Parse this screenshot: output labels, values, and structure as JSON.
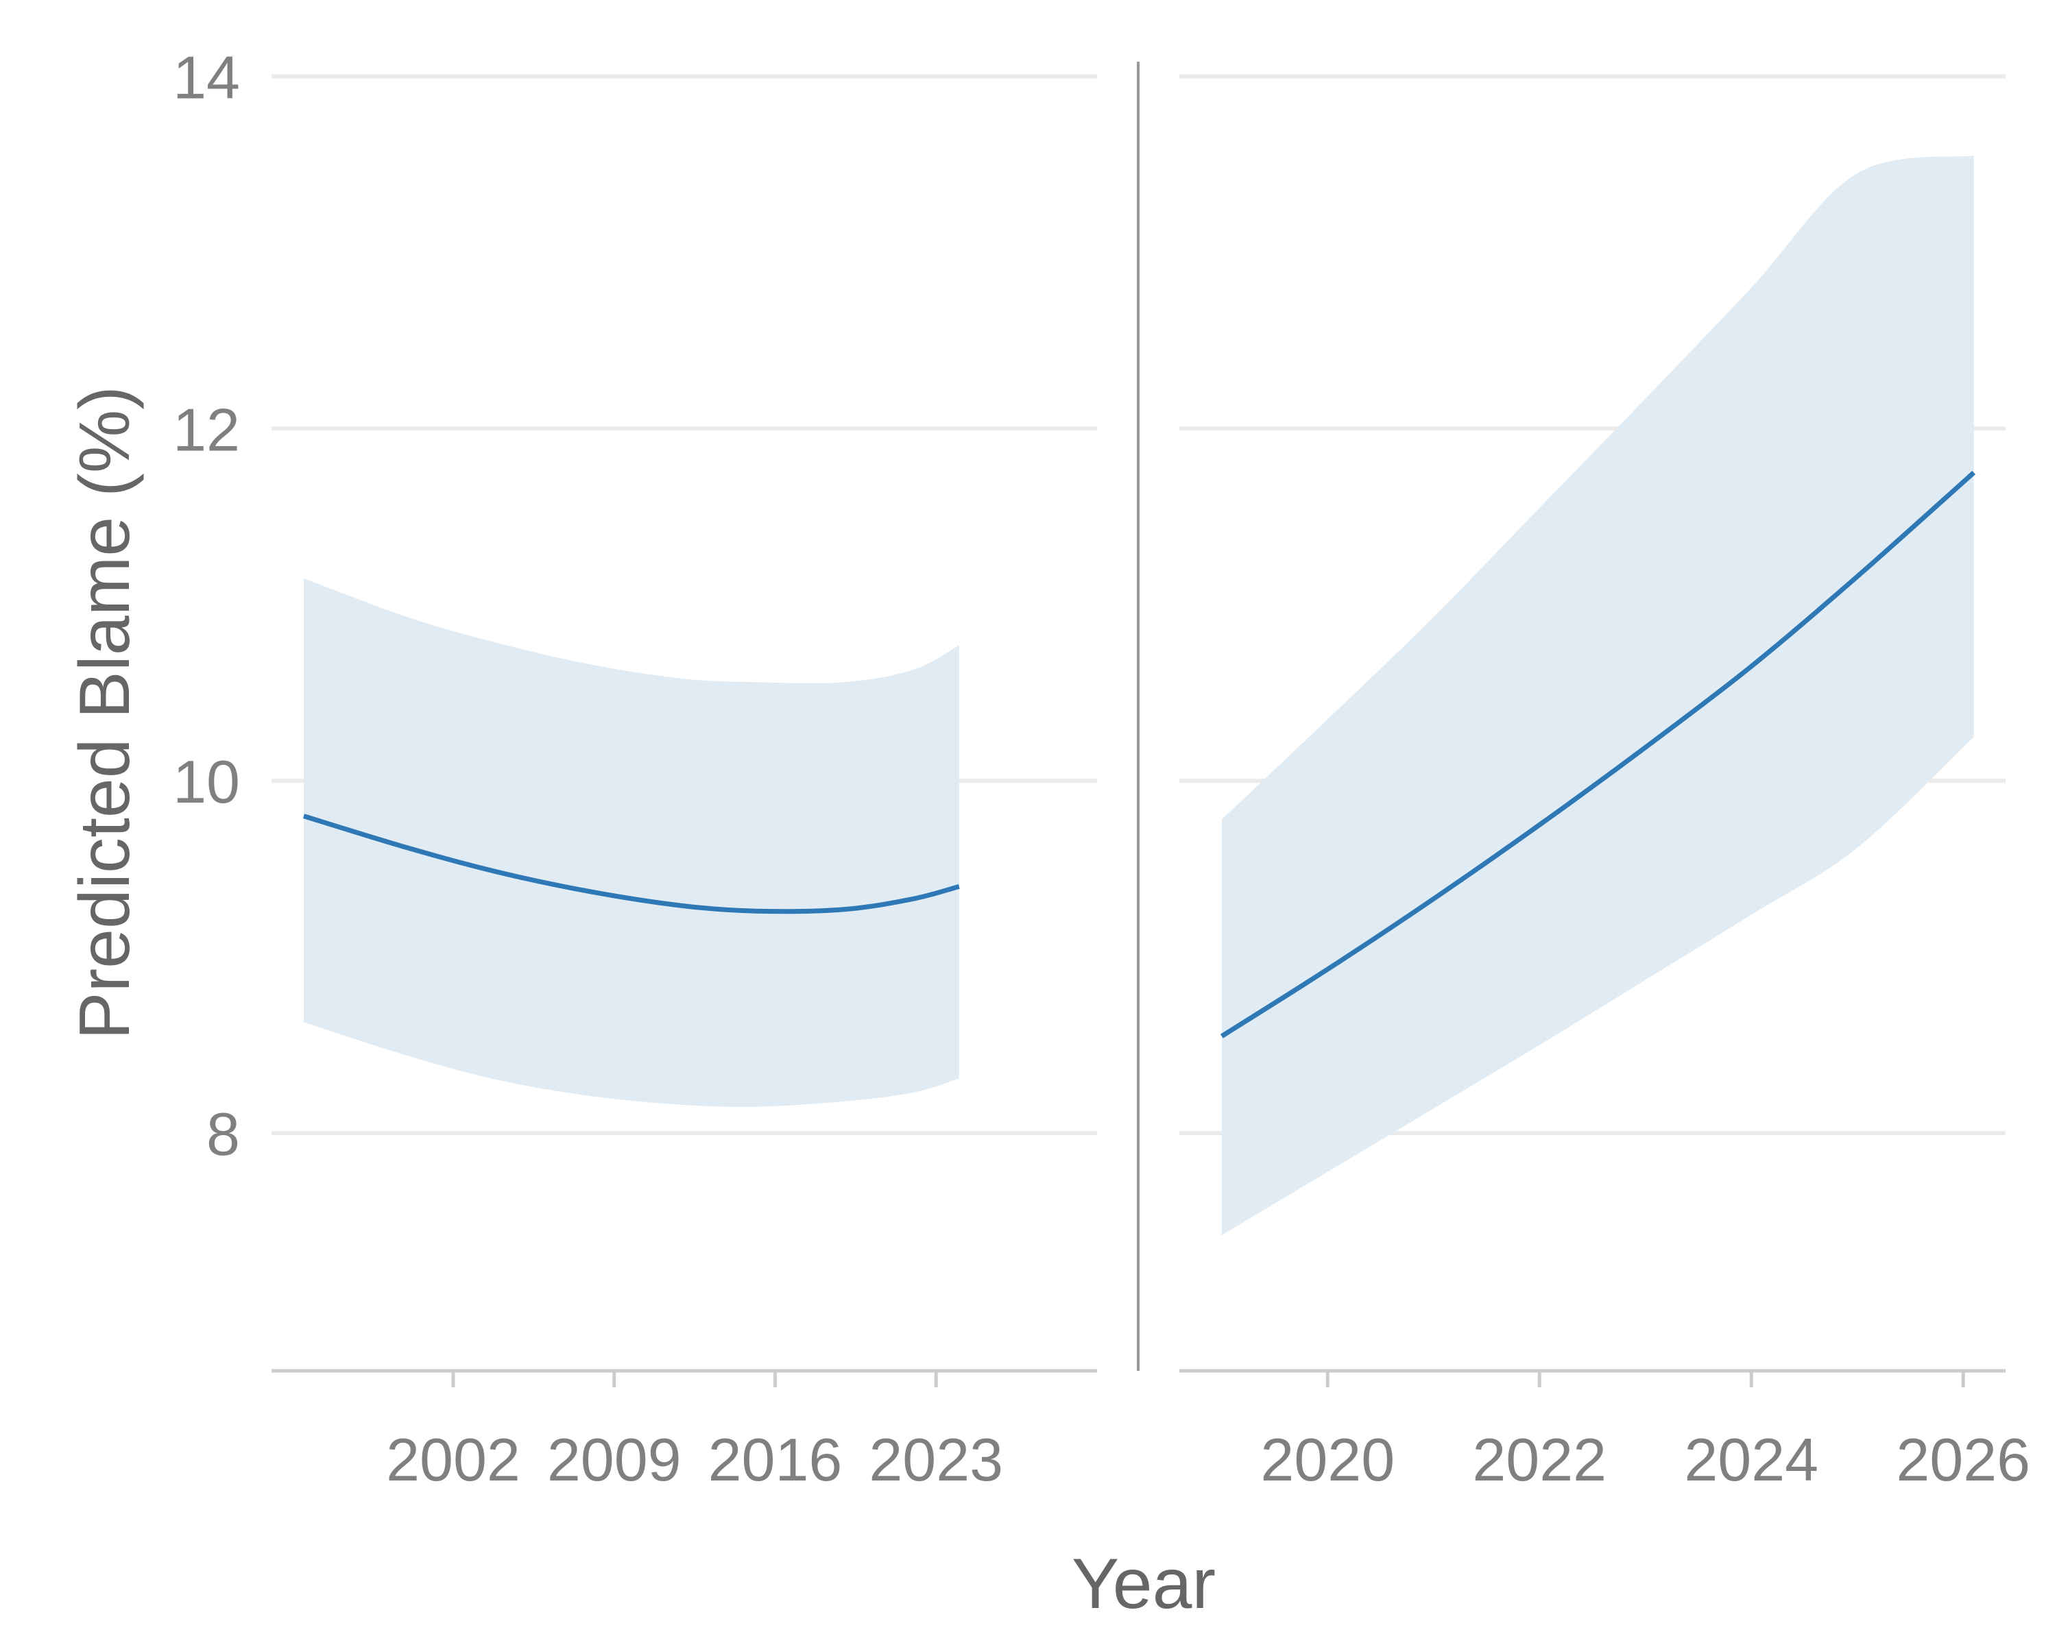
{
  "chart_data": {
    "type": "line",
    "ylabel": "Predicted Blame (%)",
    "xlabel": "Year",
    "ylim": [
      6.65,
      14.2
    ],
    "yticks": [
      8,
      10,
      12,
      14
    ],
    "grid": "horizontal",
    "colors": {
      "line": "#2e78b5",
      "band": "#e0ebf4",
      "grid": "#ebebeb",
      "axis": "#cccccc",
      "divider": "#999999"
    },
    "panels": [
      {
        "xlim": [
          1994.1,
          2030.0
        ],
        "xticks": [
          2002,
          2009,
          2016,
          2023
        ],
        "x": [
          1995.5,
          2000,
          2004,
          2008,
          2012,
          2015.3,
          2019,
          2022,
          2024
        ],
        "y": [
          9.8,
          9.62,
          9.48,
          9.37,
          9.29,
          9.26,
          9.27,
          9.33,
          9.4
        ],
        "upper": [
          11.15,
          10.93,
          10.78,
          10.66,
          10.58,
          10.56,
          10.56,
          10.63,
          10.77
        ],
        "lower": [
          8.63,
          8.44,
          8.3,
          8.21,
          8.16,
          8.15,
          8.18,
          8.23,
          8.31
        ],
        "x_end": 2024.0
      },
      {
        "xlim": [
          2018.6,
          2026.4
        ],
        "xticks": [
          2020,
          2022,
          2024,
          2026
        ],
        "x": [
          2019.0,
          2020,
          2021,
          2022,
          2023,
          2024,
          2025,
          2026.1
        ],
        "y": [
          8.55,
          8.93,
          9.33,
          9.75,
          10.19,
          10.65,
          11.16,
          11.75
        ],
        "upper": [
          9.78,
          10.35,
          10.93,
          11.55,
          12.17,
          12.8,
          13.45,
          13.55
        ],
        "lower": [
          7.42,
          7.78,
          8.14,
          8.5,
          8.87,
          9.24,
          9.62,
          10.25
        ]
      }
    ]
  }
}
